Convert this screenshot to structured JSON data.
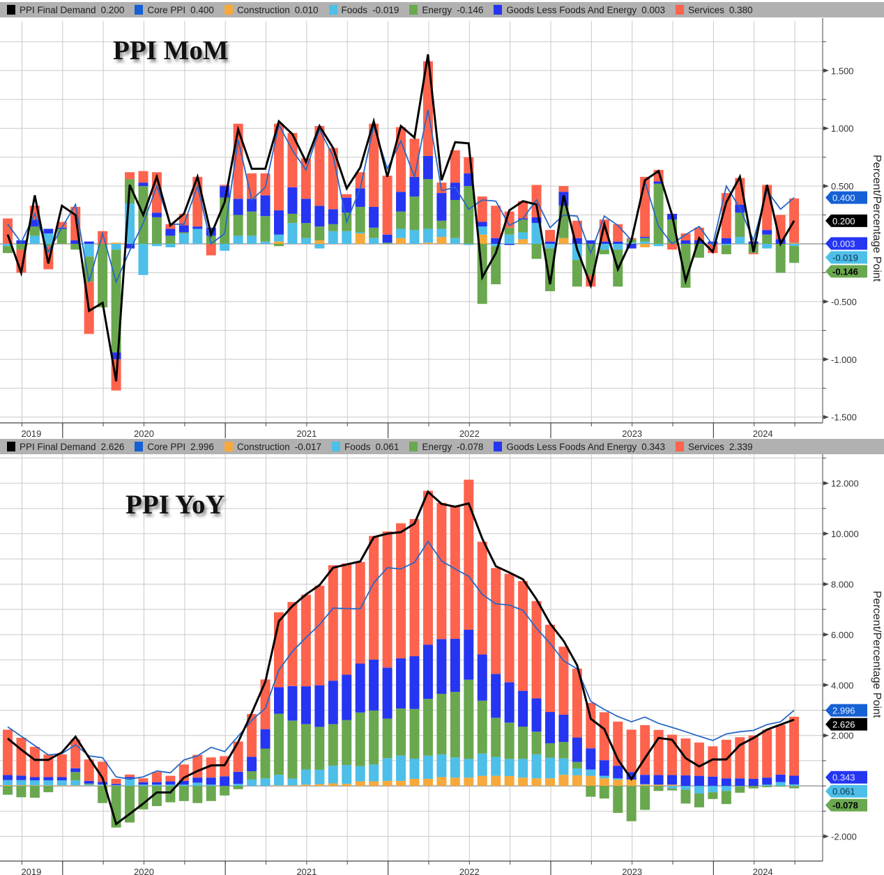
{
  "chart_data": [
    {
      "type": "bar",
      "stacked": true,
      "title": "PPI MoM",
      "ylabel": "Percent/Percentage Point",
      "ylim": [
        -1.55,
        1.93
      ],
      "yticks": [
        1.5,
        1.0,
        0.5,
        0,
        -0.5,
        -1.0,
        -1.5
      ],
      "ytick_labels": [
        "1.500",
        "1.000",
        "0.500",
        "",
        "-0.500",
        "-1.000",
        "-1.500"
      ],
      "grid_step": 0.25,
      "grid": true,
      "legend_position": "top",
      "x_start": "2019-08",
      "x_end": "2024-06",
      "x_frequency": "monthly",
      "year_labels": [
        "2019",
        "2020",
        "2021",
        "2022",
        "2023",
        "2024"
      ],
      "legend": [
        {
          "name": "PPI Final Demand",
          "value": "0.200",
          "color": "#000000"
        },
        {
          "name": "Core PPI",
          "value": "0.400",
          "color": "#1560d4"
        },
        {
          "name": "Construction",
          "value": "0.010",
          "color": "#f7a93b"
        },
        {
          "name": "Foods",
          "value": "-0.019",
          "color": "#4dbfe8"
        },
        {
          "name": "Energy",
          "value": "-0.146",
          "color": "#6aa84f"
        },
        {
          "name": "Goods Less Foods And Energy",
          "value": "0.003",
          "color": "#2535f2"
        },
        {
          "name": "Services",
          "value": "0.380",
          "color": "#fe634d"
        }
      ],
      "bar_series": {
        "Construction": [
          0,
          0,
          0,
          0,
          0,
          0,
          0,
          0,
          0.01,
          0,
          0,
          0,
          0,
          0,
          0,
          0,
          0,
          0,
          0,
          0,
          0.02,
          0,
          0,
          0.03,
          0,
          0,
          0.09,
          0,
          0,
          0.05,
          0,
          0.01,
          0.06,
          0,
          0,
          0.08,
          0,
          0,
          0.04,
          0,
          0,
          0.05,
          0,
          0,
          0,
          0,
          0,
          -0.03,
          0,
          0,
          0,
          0,
          0,
          0,
          0,
          0,
          0,
          0,
          0.01
        ],
        "Foods": [
          -0.02,
          0,
          0.07,
          0.09,
          0,
          0,
          -0.11,
          0,
          -0.05,
          0.35,
          -0.27,
          -0.02,
          -0.03,
          0.09,
          0.13,
          0,
          -0.06,
          0.07,
          0.07,
          0.02,
          0.06,
          0.18,
          0.05,
          -0.04,
          0.11,
          0.11,
          0.01,
          0.05,
          0,
          0.08,
          0.12,
          0.12,
          0.07,
          0.05,
          -0.01,
          0.07,
          -0.02,
          0.08,
          0.06,
          0.18,
          -0.04,
          0,
          -0.14,
          0,
          -0.05,
          -0.05,
          0.01,
          0.02,
          -0.02,
          0,
          0,
          0,
          0,
          -0.01,
          0.06,
          0,
          -0.04,
          0,
          -0.019
        ],
        "Energy": [
          -0.06,
          -0.05,
          0.08,
          -0.02,
          0.13,
          -0.05,
          -0.22,
          -0.55,
          -0.89,
          0.21,
          0.5,
          0.23,
          0.07,
          0.01,
          0,
          0.07,
          0.4,
          0.18,
          0.21,
          0.22,
          -0.02,
          0.08,
          0.13,
          0.12,
          0.06,
          0.16,
          0.22,
          0.09,
          0.01,
          0.15,
          0.29,
          0.43,
          0.07,
          0.33,
          0.5,
          -0.52,
          -0.33,
          0.06,
          0.11,
          -0.13,
          -0.37,
          0.28,
          -0.23,
          -0.27,
          -0.04,
          -0.32,
          0.03,
          0.03,
          0.52,
          0.21,
          -0.38,
          -0.12,
          0,
          -0.08,
          0.21,
          -0.08,
          0.08,
          -0.25,
          -0.146
        ],
        "Goods Less Foods And Energy": [
          0,
          0.03,
          0.06,
          0.04,
          0.01,
          0.03,
          0.02,
          0,
          -0.06,
          -0.04,
          0.03,
          0.04,
          0.06,
          0.06,
          0.02,
          0.07,
          0.1,
          0.14,
          0.11,
          0.18,
          0.21,
          0.23,
          0.21,
          0.18,
          0.13,
          0.13,
          0.16,
          0.18,
          0.07,
          0.17,
          0.17,
          0.2,
          0.24,
          0.15,
          0.11,
          0.04,
          0.05,
          -0.01,
          0.01,
          0.05,
          0.02,
          0.12,
          0.05,
          0.03,
          0.02,
          0.02,
          -0.04,
          0.01,
          0.02,
          0.05,
          0.03,
          0.03,
          0.02,
          0.05,
          0.07,
          0.02,
          0.04,
          0.04,
          0.003
        ],
        "Services": [
          0.22,
          -0.2,
          0.12,
          -0.2,
          0.05,
          0.29,
          -0.45,
          0.11,
          -0.27,
          0.06,
          0.1,
          0.35,
          0.04,
          0.1,
          0.43,
          -0.1,
          0.01,
          0.65,
          0.22,
          0.19,
          0.75,
          0.47,
          0.35,
          0.69,
          0.53,
          0.03,
          0.14,
          0.72,
          0.51,
          0.56,
          0.33,
          0.82,
          0.09,
          0.28,
          0.14,
          0.22,
          0.28,
          0.14,
          0.15,
          0.28,
          0.1,
          0.05,
          0.15,
          -0.1,
          0.19,
          0.15,
          0.01,
          0.52,
          0.1,
          -0.05,
          0.06,
          0.11,
          -0.08,
          0.39,
          0.23,
          -0.01,
          0.39,
          0.21,
          0.38
        ]
      },
      "line_series": {
        "Core PPI": [
          0.17,
          0.01,
          0.26,
          -0.07,
          0.14,
          0.34,
          -0.33,
          0.09,
          -0.33,
          -0.06,
          0.18,
          0.5,
          0.17,
          0.17,
          0.5,
          0,
          0.09,
          0.9,
          0.38,
          0.49,
          1.03,
          0.81,
          0.64,
          0.99,
          0.76,
          0.19,
          0.48,
          1.02,
          0.65,
          0.89,
          0.58,
          1.16,
          0.46,
          0.49,
          0.3,
          0.38,
          0.37,
          0.16,
          0.22,
          0.38,
          0.14,
          0.25,
          0.24,
          -0.08,
          0.24,
          0.16,
          0.03,
          0.54,
          0.15,
          0,
          0.08,
          0.15,
          -0.01,
          0.5,
          0.31,
          0.03,
          0.46,
          0.3,
          0.4
        ],
        "PPI Final Demand": [
          0.08,
          -0.25,
          0.42,
          -0.17,
          0.33,
          0.25,
          -0.58,
          -0.51,
          -1.19,
          0.51,
          0.25,
          0.58,
          0.16,
          0.26,
          0.58,
          0.08,
          0.36,
          0.99,
          0.65,
          0.65,
          1.06,
          0.95,
          0.71,
          1.02,
          0.83,
          0.48,
          0.66,
          1.06,
          0.58,
          1.02,
          0.92,
          1.64,
          0.55,
          0.88,
          0.87,
          -0.29,
          -0.08,
          0.29,
          0.37,
          0.34,
          -0.35,
          0.42,
          -0.05,
          -0.36,
          0.17,
          -0.22,
          0.03,
          0.55,
          0.63,
          0.25,
          -0.32,
          0.05,
          -0.07,
          0.36,
          0.58,
          -0.07,
          0.51,
          0,
          0.2
        ]
      },
      "last_value_flags": [
        {
          "label": "-0.019",
          "value": -0.019,
          "color": "#4dbfe8",
          "text_color": "#10304a"
        },
        {
          "label": "0.400",
          "value": 0.4,
          "color": "#1560d4",
          "text_color": "#e8f0ff"
        },
        {
          "label": "0.200",
          "value": 0.2,
          "color": "#000000",
          "text_color": "#ffffff"
        },
        {
          "label": "0.003",
          "value": 0.003,
          "color": "#2535f2",
          "text_color": "#dfe3ff"
        },
        {
          "label": "-0.146",
          "value": -0.146,
          "color": "#6aa84f",
          "text_color": "#000000"
        }
      ]
    },
    {
      "type": "bar",
      "stacked": true,
      "title": "PPI YoY",
      "ylabel": "Percent/Percentage Point",
      "ylim": [
        -2.98,
        13.15
      ],
      "yticks": [
        12,
        10,
        8,
        6,
        4,
        2,
        0,
        -2
      ],
      "ytick_labels": [
        "12.000",
        "10.000",
        "8.000",
        "6.000",
        "4.000",
        "2.000",
        "",
        "-2.000"
      ],
      "grid_step": 1,
      "grid": true,
      "legend_position": "top",
      "x_start": "2019-08",
      "x_end": "2024-06",
      "x_frequency": "monthly",
      "year_labels": [
        "2019",
        "2020",
        "2021",
        "2022",
        "2023",
        "2024"
      ],
      "legend": [
        {
          "name": "PPI Final Demand",
          "value": "2.626",
          "color": "#000000"
        },
        {
          "name": "Core PPI",
          "value": "2.996",
          "color": "#1560d4"
        },
        {
          "name": "Construction",
          "value": "-0.017",
          "color": "#f7a93b"
        },
        {
          "name": "Foods",
          "value": "0.061",
          "color": "#4dbfe8"
        },
        {
          "name": "Energy",
          "value": "-0.078",
          "color": "#6aa84f"
        },
        {
          "name": "Goods Less Foods And Energy",
          "value": "0.343",
          "color": "#2535f2"
        },
        {
          "name": "Services",
          "value": "2.339",
          "color": "#fe634d"
        }
      ],
      "bar_series": {
        "Construction": [
          0.03,
          0.03,
          0.02,
          0.02,
          0.02,
          0.02,
          0.02,
          0.02,
          0.01,
          0,
          0,
          0,
          0,
          0,
          0,
          0,
          0,
          0,
          0,
          0,
          0.02,
          0.02,
          0.05,
          0.07,
          0.1,
          0.08,
          0.18,
          0.18,
          0.2,
          0.2,
          0.28,
          0.28,
          0.35,
          0.33,
          0.33,
          0.4,
          0.4,
          0.39,
          0.33,
          0.3,
          0.3,
          0.44,
          0.42,
          0.4,
          0.3,
          0.25,
          0.25,
          0.05,
          0.05,
          0.05,
          0,
          0,
          0,
          0,
          0,
          0,
          0,
          0,
          -0.017
        ],
        "Foods": [
          0.2,
          0.2,
          0.2,
          0.2,
          0.2,
          0.2,
          0.04,
          0.04,
          0.02,
          0.3,
          0.05,
          0.05,
          0.05,
          0.05,
          0.13,
          0.05,
          0,
          0.08,
          0.25,
          0.3,
          0.42,
          0.27,
          0.6,
          0.57,
          0.7,
          0.75,
          0.6,
          0.67,
          0.9,
          1,
          0.8,
          0.92,
          0.9,
          0.8,
          0.74,
          0.88,
          0.75,
          0.68,
          0.74,
          0.95,
          0.82,
          0.65,
          0.27,
          0.25,
          0.1,
          0.05,
          0,
          0.02,
          0,
          -0.1,
          -0.15,
          -0.3,
          -0.25,
          -0.2,
          -0.02,
          0,
          0.05,
          0.15,
          0.061
        ],
        "Energy": [
          -0.35,
          -0.45,
          -0.47,
          -0.25,
          0,
          0.33,
          0.03,
          -0.68,
          -1.65,
          -1.45,
          -0.93,
          -0.8,
          -0.65,
          -0.6,
          -0.68,
          -0.6,
          -0.38,
          -0.13,
          0.33,
          1.18,
          2.42,
          2.3,
          1.8,
          1.7,
          1.65,
          1.78,
          2.13,
          2.14,
          1.57,
          1.87,
          1.97,
          2.25,
          2.4,
          2.6,
          3.14,
          2.1,
          1.55,
          1.44,
          1.28,
          0.9,
          0.57,
          0.65,
          0.26,
          -0.43,
          -0.5,
          -1.07,
          -1.4,
          -0.95,
          -0.2,
          -0.08,
          -0.55,
          -0.55,
          -0.27,
          -0.52,
          -0.25,
          -0.1,
          -0.05,
          -0.03,
          -0.078
        ],
        "Goods Less Foods And Energy": [
          0.2,
          0.18,
          0.13,
          0.13,
          0.13,
          0.15,
          0.11,
          0.1,
          0.05,
          0.05,
          0.1,
          0.1,
          0.13,
          0.15,
          0.2,
          0.28,
          0.38,
          0.48,
          0.57,
          0.77,
          1.05,
          1.37,
          1.5,
          1.65,
          1.72,
          1.8,
          1.94,
          2.02,
          2.02,
          1.99,
          2.09,
          2.15,
          2.17,
          2.1,
          1.98,
          1.83,
          1.74,
          1.6,
          1.42,
          1.32,
          1.24,
          1.08,
          0.97,
          0.84,
          0.62,
          0.5,
          0.3,
          0.37,
          0.38,
          0.38,
          0.42,
          0.4,
          0.37,
          0.3,
          0.3,
          0.28,
          0.28,
          0.3,
          0.343
        ],
        "Services": [
          1.8,
          1.5,
          1.2,
          0.9,
          0.9,
          1.14,
          0.85,
          0.8,
          0.2,
          0.1,
          0.15,
          0.4,
          0.22,
          0.65,
          0.9,
          0.8,
          0.8,
          1.2,
          1.7,
          1.97,
          2.97,
          3.33,
          3.63,
          3.95,
          4.58,
          4.41,
          4.03,
          4.9,
          5.4,
          5.35,
          5.44,
          6.1,
          5.4,
          5.25,
          5.95,
          4.47,
          4.2,
          4.3,
          4.35,
          3.86,
          3.46,
          2.7,
          2.73,
          1.8,
          1.9,
          1.75,
          1.68,
          1.97,
          1.79,
          1.6,
          1.46,
          1.32,
          1.2,
          1.53,
          1.63,
          1.72,
          1.9,
          1.97,
          2.339
        ]
      },
      "line_series": {
        "Core PPI": [
          2.34,
          1.97,
          1.6,
          1.23,
          1.28,
          1.63,
          1.19,
          1.12,
          0.36,
          0.27,
          0.36,
          0.59,
          0.52,
          1.03,
          1.19,
          1.53,
          1.36,
          1.97,
          2.6,
          3.08,
          4.59,
          5.33,
          5.88,
          6.39,
          7.05,
          7.03,
          7.02,
          8.05,
          8.65,
          8.6,
          8.86,
          9.69,
          8.92,
          8.6,
          8.31,
          7.59,
          7.22,
          7.17,
          6.96,
          6.25,
          5.65,
          4.96,
          4.64,
          3.35,
          3.03,
          2.75,
          2.54,
          2.73,
          2.48,
          2.32,
          2.15,
          1.97,
          1.8,
          2.06,
          2.15,
          2.2,
          2.43,
          2.54,
          2.996
        ],
        "PPI Final Demand": [
          1.88,
          1.44,
          1.03,
          1.03,
          1.33,
          1.95,
          1.12,
          0.31,
          -1.51,
          -1.11,
          -0.7,
          -0.26,
          -0.26,
          0.33,
          0.59,
          0.81,
          0.82,
          1.74,
          2.89,
          4.13,
          6.53,
          7.13,
          7.59,
          7.96,
          8.65,
          8.78,
          8.9,
          9.86,
          10,
          10.06,
          10.4,
          11.66,
          11.18,
          11.07,
          11.2,
          9.8,
          8.71,
          8.46,
          8.19,
          7.4,
          6.44,
          5.75,
          4.78,
          2.66,
          2.25,
          1.05,
          0.27,
          1.1,
          1.9,
          1.83,
          1.1,
          0.77,
          1.05,
          1.05,
          1.62,
          1.9,
          2.23,
          2.43,
          2.626
        ]
      },
      "last_value_flags": [
        {
          "label": "0.061",
          "value": 0.061,
          "color": "#4dbfe8",
          "text_color": "#10304a"
        },
        {
          "label": "2.626",
          "value": 2.626,
          "color": "#000000",
          "text_color": "#ffffff"
        },
        {
          "label": "2.996",
          "value": 2.996,
          "color": "#1560d4",
          "text_color": "#e8f0ff"
        },
        {
          "label": "0.343",
          "value": 0.343,
          "color": "#2535f2",
          "text_color": "#dfe3ff"
        },
        {
          "label": "-0.078",
          "value": -0.078,
          "color": "#6aa84f",
          "text_color": "#000000"
        }
      ]
    }
  ]
}
